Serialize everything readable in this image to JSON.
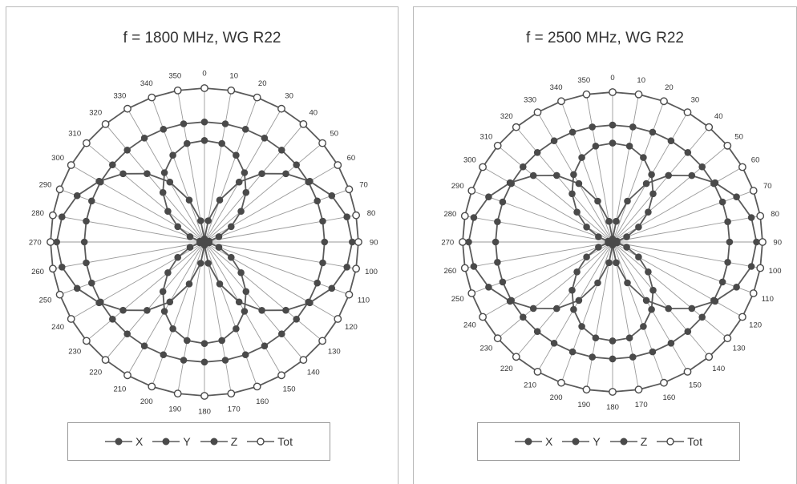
{
  "chart_data": [
    {
      "type": "polar",
      "title": "f = 1800 MHz, WG R22",
      "angle_ticks": [
        "0",
        "10",
        "20",
        "30",
        "40",
        "50",
        "60",
        "70",
        "80",
        "90",
        "100",
        "110",
        "120",
        "130",
        "140",
        "150",
        "160",
        "170",
        "180",
        "190",
        "200",
        "210",
        "220",
        "230",
        "240",
        "250",
        "260",
        "270",
        "280",
        "290",
        "300",
        "310",
        "320",
        "330",
        "340",
        "350"
      ],
      "angles_deg": [
        0,
        10,
        20,
        30,
        40,
        50,
        60,
        70,
        80,
        90,
        100,
        110,
        120,
        130,
        140,
        150,
        160,
        170,
        180,
        190,
        200,
        210,
        220,
        230,
        240,
        250,
        260,
        270,
        280,
        290,
        300,
        310,
        320,
        330,
        340,
        350
      ],
      "rlim": [
        0,
        1
      ],
      "series": [
        {
          "name": "X",
          "marker": "filled",
          "values": [
            0.02,
            0.14,
            0.29,
            0.45,
            0.58,
            0.69,
            0.79,
            0.88,
            0.94,
            0.96,
            0.94,
            0.88,
            0.79,
            0.69,
            0.58,
            0.45,
            0.29,
            0.14,
            0.02,
            0.14,
            0.29,
            0.45,
            0.58,
            0.69,
            0.79,
            0.88,
            0.94,
            0.96,
            0.94,
            0.88,
            0.79,
            0.69,
            0.58,
            0.45,
            0.29,
            0.14
          ]
        },
        {
          "name": "Y",
          "marker": "filled",
          "values": [
            0.78,
            0.78,
            0.78,
            0.78,
            0.78,
            0.78,
            0.78,
            0.78,
            0.78,
            0.78,
            0.78,
            0.78,
            0.78,
            0.78,
            0.78,
            0.78,
            0.78,
            0.78,
            0.78,
            0.78,
            0.78,
            0.78,
            0.78,
            0.78,
            0.78,
            0.78,
            0.78,
            0.78,
            0.78,
            0.78,
            0.78,
            0.78,
            0.78,
            0.78,
            0.78,
            0.78
          ]
        },
        {
          "name": "Z",
          "marker": "filled",
          "values": [
            0.66,
            0.65,
            0.6,
            0.52,
            0.42,
            0.31,
            0.2,
            0.1,
            0.03,
            0.02,
            0.03,
            0.1,
            0.2,
            0.31,
            0.42,
            0.52,
            0.6,
            0.65,
            0.66,
            0.65,
            0.6,
            0.52,
            0.42,
            0.31,
            0.2,
            0.1,
            0.03,
            0.02,
            0.03,
            0.1,
            0.2,
            0.31,
            0.42,
            0.52,
            0.6,
            0.65
          ]
        },
        {
          "name": "Tot",
          "marker": "open",
          "values": [
            1,
            1,
            1,
            1,
            1,
            1,
            1,
            1,
            1,
            1,
            1,
            1,
            1,
            1,
            1,
            1,
            1,
            1,
            1,
            1,
            1,
            1,
            1,
            1,
            1,
            1,
            1,
            1,
            1,
            1,
            1,
            1,
            1,
            1,
            1,
            1
          ]
        }
      ]
    },
    {
      "type": "polar",
      "title": "f = 2500 MHz, WG R22",
      "angle_ticks": [
        "0",
        "10",
        "20",
        "30",
        "40",
        "50",
        "60",
        "70",
        "80",
        "90",
        "100",
        "110",
        "120",
        "130",
        "140",
        "150",
        "160",
        "170",
        "180",
        "190",
        "200",
        "210",
        "220",
        "230",
        "240",
        "250",
        "260",
        "270",
        "280",
        "290",
        "300",
        "310",
        "320",
        "330",
        "340",
        "350"
      ],
      "angles_deg": [
        0,
        10,
        20,
        30,
        40,
        50,
        60,
        70,
        80,
        90,
        100,
        110,
        120,
        130,
        140,
        150,
        160,
        170,
        180,
        190,
        200,
        210,
        220,
        230,
        240,
        250,
        260,
        270,
        280,
        290,
        300,
        310,
        320,
        330,
        340,
        350
      ],
      "rlim": [
        0,
        1
      ],
      "series": [
        {
          "name": "X",
          "marker": "filled",
          "values": [
            0.02,
            0.14,
            0.29,
            0.45,
            0.58,
            0.69,
            0.79,
            0.88,
            0.94,
            0.96,
            0.94,
            0.88,
            0.79,
            0.69,
            0.58,
            0.45,
            0.29,
            0.14,
            0.02,
            0.14,
            0.29,
            0.45,
            0.58,
            0.69,
            0.79,
            0.88,
            0.94,
            0.96,
            0.94,
            0.88,
            0.79,
            0.69,
            0.58,
            0.45,
            0.29,
            0.14
          ]
        },
        {
          "name": "Y",
          "marker": "filled",
          "values": [
            0.78,
            0.78,
            0.78,
            0.78,
            0.78,
            0.78,
            0.78,
            0.78,
            0.78,
            0.78,
            0.78,
            0.78,
            0.78,
            0.78,
            0.78,
            0.78,
            0.78,
            0.78,
            0.78,
            0.78,
            0.78,
            0.78,
            0.78,
            0.78,
            0.78,
            0.78,
            0.78,
            0.78,
            0.78,
            0.78,
            0.78,
            0.78,
            0.78,
            0.78,
            0.78,
            0.78
          ]
        },
        {
          "name": "Z",
          "marker": "filled",
          "values": [
            0.66,
            0.65,
            0.6,
            0.52,
            0.42,
            0.31,
            0.2,
            0.1,
            0.03,
            0.02,
            0.03,
            0.1,
            0.2,
            0.31,
            0.42,
            0.52,
            0.6,
            0.65,
            0.66,
            0.65,
            0.6,
            0.52,
            0.42,
            0.31,
            0.2,
            0.1,
            0.03,
            0.02,
            0.03,
            0.1,
            0.2,
            0.31,
            0.42,
            0.52,
            0.6,
            0.65
          ]
        },
        {
          "name": "Tot",
          "marker": "open",
          "values": [
            1,
            1,
            1,
            1,
            1,
            1,
            1,
            1,
            1,
            1,
            1,
            1,
            1,
            1,
            1,
            1,
            1,
            1,
            1,
            1,
            1,
            1,
            1,
            1,
            1,
            1,
            1,
            1,
            1,
            1,
            1,
            1,
            1,
            1,
            1,
            1
          ]
        }
      ]
    }
  ],
  "style": {
    "line_color": "#5a5a5a",
    "marker_fill": "#4a4a4a",
    "grid_color": "#9a9a9a",
    "open_marker_fill": "#ffffff",
    "text_color": "#333333"
  }
}
